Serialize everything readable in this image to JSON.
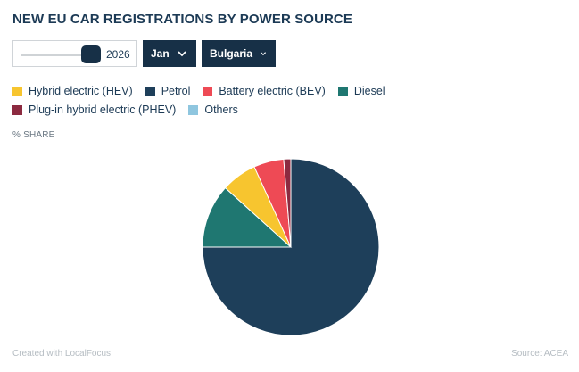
{
  "title": "NEW EU CAR REGISTRATIONS BY POWER SOURCE",
  "controls": {
    "year": "2026",
    "month": "Jan",
    "country": "Bulgaria"
  },
  "unit_label": "% SHARE",
  "footer": {
    "credit": "Created with LocalFocus",
    "source": "Source: ACEA"
  },
  "colors": {
    "hev": "#f7c52f",
    "petrol": "#1e3f5a",
    "bev": "#ee4a55",
    "diesel": "#1f7771",
    "phev": "#8c2a40",
    "others": "#8fc6df"
  },
  "chart_data": {
    "type": "pie",
    "title": "NEW EU CAR REGISTRATIONS BY POWER SOURCE",
    "unit": "% SHARE",
    "series": [
      {
        "name": "Hybrid electric (HEV)",
        "value": 6.5,
        "color": "#f7c52f"
      },
      {
        "name": "Petrol",
        "value": 75.0,
        "color": "#1e3f5a"
      },
      {
        "name": "Battery electric (BEV)",
        "value": 5.5,
        "color": "#ee4a55"
      },
      {
        "name": "Diesel",
        "value": 11.7,
        "color": "#1f7771"
      },
      {
        "name": "Plug-in hybrid electric (PHEV)",
        "value": 1.3,
        "color": "#8c2a40"
      },
      {
        "name": "Others",
        "value": 0.0,
        "color": "#8fc6df"
      }
    ],
    "slice_order_clockwise_from_top": [
      "Petrol",
      "Diesel",
      "Hybrid electric (HEV)",
      "Battery electric (BEV)",
      "Plug-in hybrid electric (PHEV)",
      "Others"
    ],
    "legend_position": "top"
  }
}
